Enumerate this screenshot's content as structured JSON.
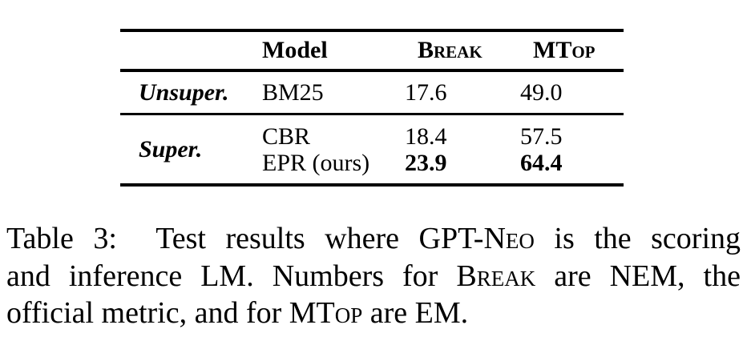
{
  "colors": {
    "text": "#000000",
    "background": "#ffffff"
  },
  "table": {
    "header": {
      "group": "",
      "model": "Model",
      "break": "Break",
      "mtop": "MTop"
    },
    "unsuper_row": {
      "group": "Unsuper.",
      "model": "BM25",
      "break": "17.6",
      "mtop": "49.0"
    },
    "super_section": {
      "group": "Super.",
      "rows": [
        {
          "model": "CBR",
          "break": "18.4",
          "mtop": "57.5"
        },
        {
          "model": "EPR (ours)",
          "break": "23.9",
          "mtop": "64.4"
        }
      ]
    }
  },
  "caption": {
    "label": "Table 3:",
    "lines": [
      {
        "justify": true,
        "segments": [
          {
            "text": "Table 3:  Test results where ",
            "smallcaps": false
          },
          {
            "text": "GPT-Neo",
            "smallcaps": true
          },
          {
            "text": " is the scoring",
            "smallcaps": false
          }
        ]
      },
      {
        "justify": true,
        "segments": [
          {
            "text": "and inference LM. Numbers for ",
            "smallcaps": false
          },
          {
            "text": "Break",
            "smallcaps": true
          },
          {
            "text": " are NEM, the",
            "smallcaps": false
          }
        ]
      },
      {
        "justify": false,
        "segments": [
          {
            "text": "official metric, and for ",
            "smallcaps": false
          },
          {
            "text": "MTop",
            "smallcaps": true
          },
          {
            "text": " are EM.",
            "smallcaps": false
          }
        ]
      }
    ]
  }
}
